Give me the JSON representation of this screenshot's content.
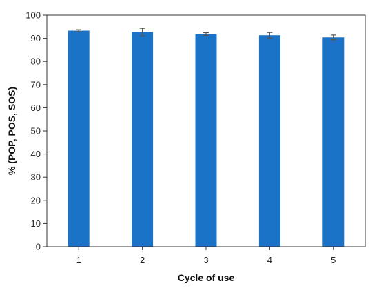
{
  "chart_data": {
    "type": "bar",
    "categories": [
      "1",
      "2",
      "3",
      "4",
      "5"
    ],
    "values": [
      93.3,
      92.7,
      91.8,
      91.3,
      90.4
    ],
    "errors": [
      0.4,
      1.6,
      0.6,
      1.2,
      1.0
    ],
    "xlabel": "Cycle of use",
    "ylabel": "% (POP, POS, SOS)",
    "ylim": [
      0,
      100
    ],
    "yticks": [
      0,
      10,
      20,
      30,
      40,
      50,
      60,
      70,
      80,
      90,
      100
    ],
    "bar_color": "#1a73c7",
    "error_color": "#555555",
    "grid": false,
    "legend": "none"
  }
}
